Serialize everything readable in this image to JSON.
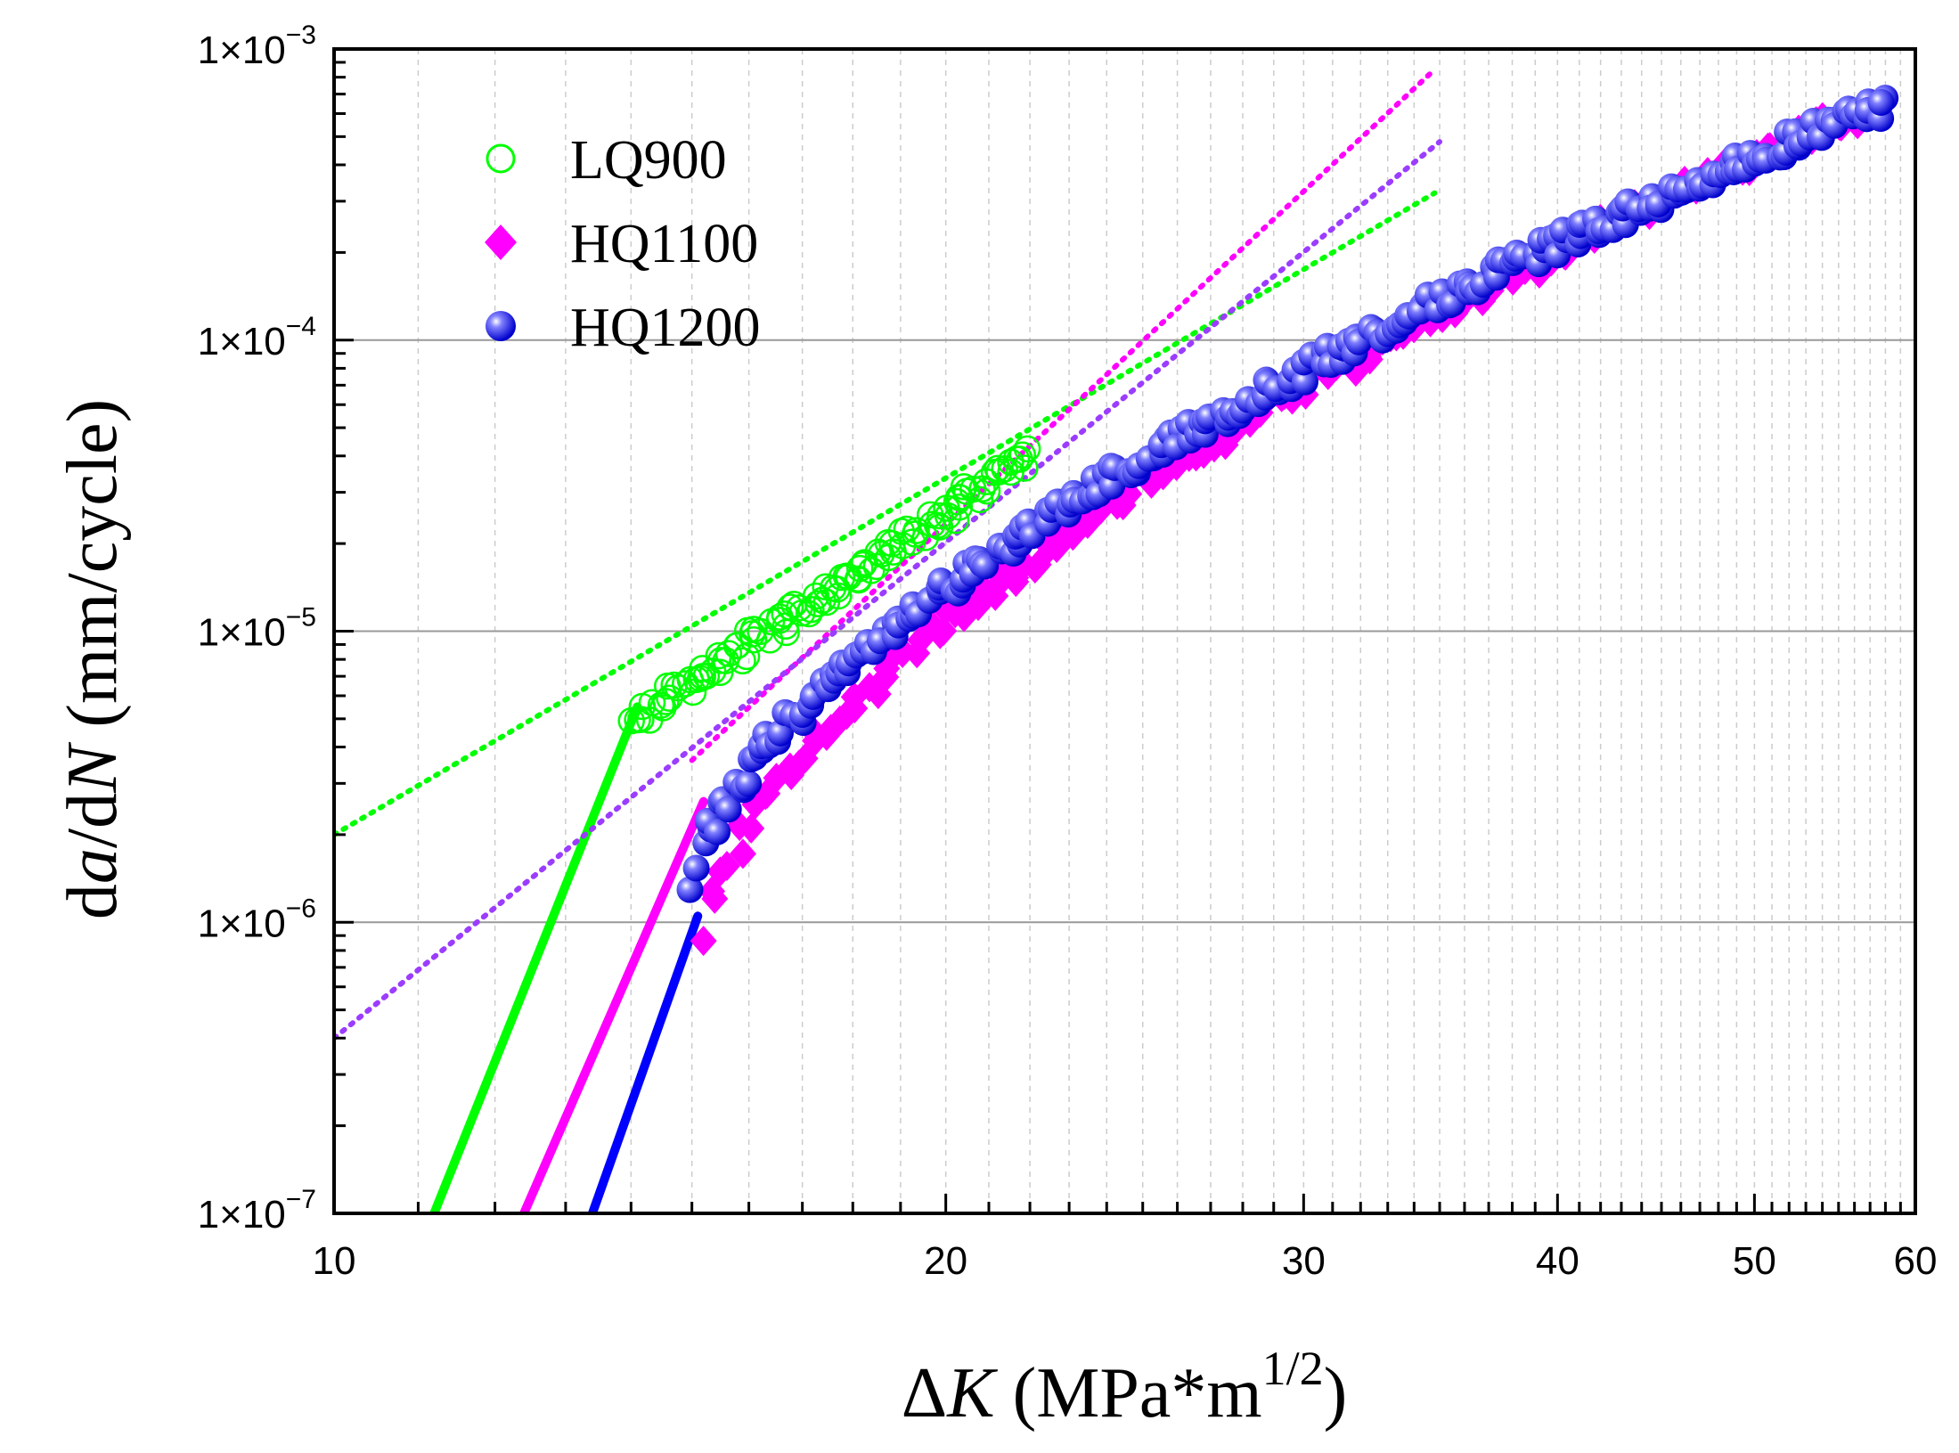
{
  "chart_data": {
    "type": "scatter",
    "title": "",
    "xlabel": {
      "symbol": "ΔK",
      "symbol_prefix": "Δ",
      "symbol_italic": "K",
      "units": " (MPa*m",
      "superscript": "1/2",
      "close": ")"
    },
    "ylabel": {
      "d1": "d",
      "a": "a",
      "d2": "/d",
      "N": "N",
      "units": " (mm/cycle)"
    },
    "x_scale": "log",
    "y_scale": "log",
    "xlim": [
      10,
      60
    ],
    "ylim": [
      1e-07,
      0.001
    ],
    "x_ticks": [
      {
        "value": 10,
        "label": "10"
      },
      {
        "value": 20,
        "label": "20"
      },
      {
        "value": 30,
        "label": "30"
      },
      {
        "value": 40,
        "label": "40"
      },
      {
        "value": 50,
        "label": "50"
      },
      {
        "value": 60,
        "label": "60"
      }
    ],
    "y_ticks": [
      {
        "value": 1e-07,
        "mant": "1×10",
        "exp": "−7"
      },
      {
        "value": 1e-06,
        "mant": "1×10",
        "exp": "−6"
      },
      {
        "value": 1e-05,
        "mant": "1×10",
        "exp": "−5"
      },
      {
        "value": 0.0001,
        "mant": "1×10",
        "exp": "−4"
      },
      {
        "value": 0.001,
        "mant": "1×10",
        "exp": "−3"
      }
    ],
    "grid": true,
    "legend_position": "top-left",
    "series": [
      {
        "name": "LQ900",
        "color": "#00ff00",
        "marker": "open-circle",
        "data_x_range": [
          14.1,
          22.0
        ],
        "data_y_range": [
          5e-06,
          4e-05
        ],
        "threshold_line": {
          "x": [
            11.2,
            14.1
          ],
          "y": [
            1e-07,
            5.5e-06
          ]
        },
        "paris_fit": {
          "x": [
            10.0,
            34.8
          ],
          "y": [
            2e-06,
            0.00032
          ]
        }
      },
      {
        "name": "HQ1100",
        "color": "#ff00ff",
        "marker": "diamond",
        "data_x_range": [
          15.2,
          56.0
        ],
        "data_y_range": [
          9e-07,
          0.0006
        ],
        "threshold_line": {
          "x": [
            12.4,
            15.2
          ],
          "y": [
            1e-07,
            2.6e-06
          ]
        },
        "paris_fit": {
          "x": [
            15.0,
            34.8
          ],
          "y": [
            3.6e-06,
            0.00085
          ]
        }
      },
      {
        "name": "HQ1200",
        "color": "#0000ff",
        "marker": "sphere",
        "data_x_range": [
          15.0,
          58.0
        ],
        "data_y_range": [
          1.3e-06,
          0.00065
        ],
        "threshold_line": {
          "x": [
            13.4,
            15.1
          ],
          "y": [
            1e-07,
            1.05e-06
          ]
        },
        "paris_fit": {
          "x": [
            10.0,
            35.0
          ],
          "y": [
            4e-07,
            0.00048
          ]
        }
      }
    ]
  },
  "colors": {
    "paris_fit_hq1200": "#9b3cff",
    "grid_major": "#999999",
    "grid_minor": "#cccccc",
    "sphere_highlight": "#ffffff"
  }
}
